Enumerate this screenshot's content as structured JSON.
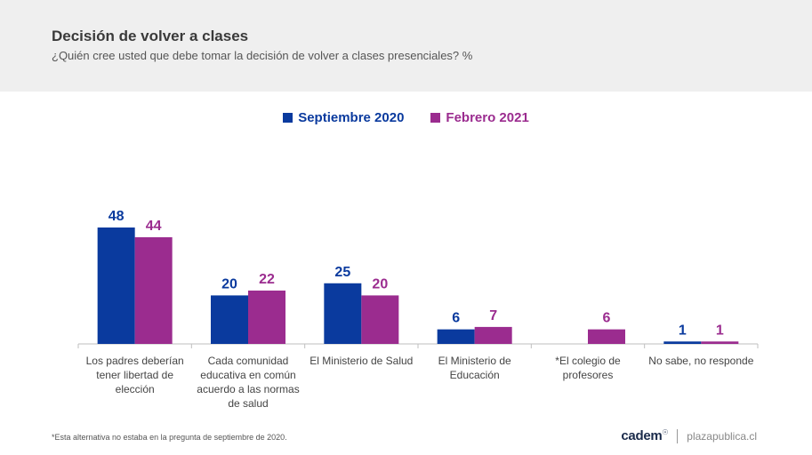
{
  "header": {
    "title": "Decisión de volver a clases",
    "subtitle": "¿Quién cree usted que debe tomar la decisión de volver a clases presenciales? %"
  },
  "chart_data": {
    "type": "bar",
    "categories": [
      "Los padres deberían tener libertad de elección",
      "Cada comunidad educativa en común acuerdo a las normas de salud",
      "El Ministerio de Salud",
      "El Ministerio de Educación",
      "*El colegio de profesores",
      "No sabe, no responde"
    ],
    "category_lines": [
      [
        "Los padres deberían",
        "tener libertad de",
        "elección"
      ],
      [
        "Cada comunidad",
        "educativa en común",
        "acuerdo a las normas",
        "de salud"
      ],
      [
        "El Ministerio de Salud"
      ],
      [
        "El Ministerio de",
        "Educación"
      ],
      [
        "*El colegio de",
        "profesores"
      ],
      [
        "No sabe, no responde"
      ]
    ],
    "series": [
      {
        "name": "Septiembre 2020",
        "color": "#0a3a9e",
        "values": [
          48,
          20,
          25,
          6,
          null,
          1
        ]
      },
      {
        "name": "Febrero 2021",
        "color": "#9b2c8f",
        "values": [
          44,
          22,
          20,
          7,
          6,
          1
        ]
      }
    ],
    "ylim": [
      0,
      48
    ],
    "legend_position": "top-center",
    "grid": false
  },
  "footnote": "*Esta alternativa no estaba en la pregunta de septiembre de 2020.",
  "brand": {
    "logo": "cadem",
    "site": "plazapublica.cl"
  }
}
